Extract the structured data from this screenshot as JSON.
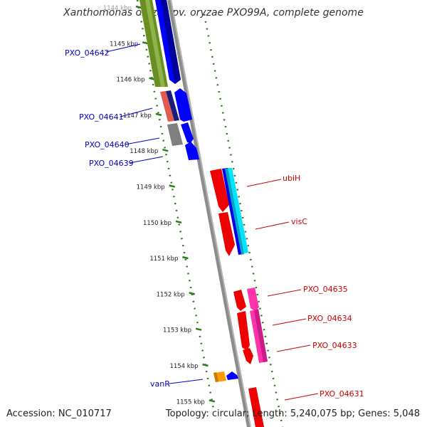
{
  "title": "Xanthomonas oryzae pv. oryzae PXO99A, complete genome",
  "footer": {
    "accession": "Accession: NC_010717",
    "topology": "Topology: circular; Length: 5,240,075 bp; Genes: 5,048"
  },
  "kbp_ticks": [
    "1144 kbp",
    "1145 kbp",
    "1146 kbp",
    "1147 kbp",
    "1148 kbp",
    "1149 kbp",
    "1150 kbp",
    "1151 kbp",
    "1152 kbp",
    "1153 kbp",
    "1154 kbp",
    "1155 kbp"
  ],
  "colors": {
    "backbone": "#8c8c8c",
    "tick_green": "#2e7d1f",
    "left_label": "#0000cc",
    "right_label": "#cc0000"
  },
  "left_labels": [
    "PXO_04642",
    "PXO_04641",
    "PXO_04640",
    "PXO_04639",
    "vanR"
  ],
  "right_labels": [
    "ubiH",
    "visC",
    "PXO_04635",
    "PXO_04634",
    "PXO_04633",
    "PXO_04631"
  ]
}
